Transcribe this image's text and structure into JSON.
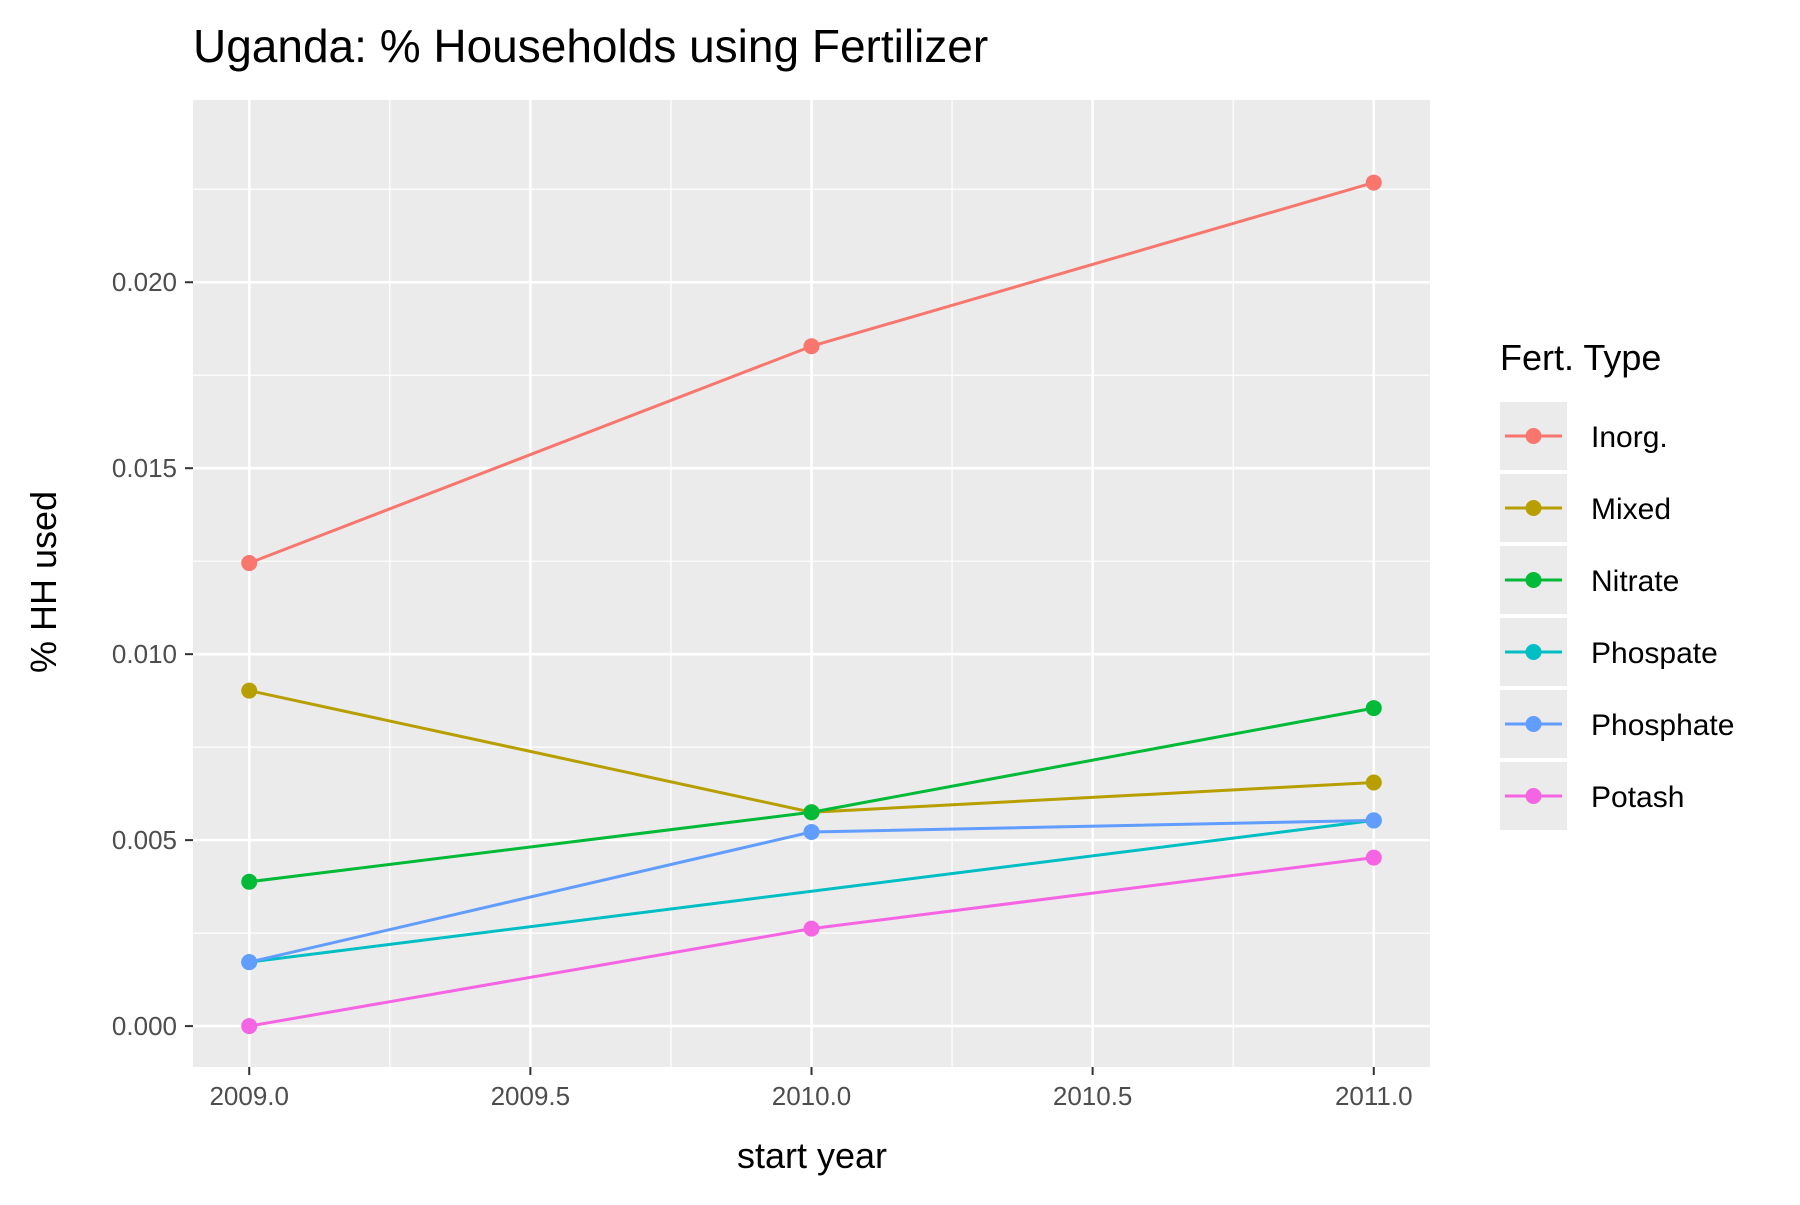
{
  "chart_data": {
    "type": "line",
    "title": "Uganda: % Households using Fertilizer",
    "xlabel": "start year",
    "ylabel": "% HH used",
    "x": [
      2009,
      2010,
      2011
    ],
    "xlim": [
      2008.9,
      2011.1
    ],
    "ylim": [
      -0.0011,
      0.0249
    ],
    "x_ticks": [
      2009.0,
      2009.5,
      2010.0,
      2010.5,
      2011.0
    ],
    "x_tick_labels": [
      "2009.0",
      "2009.5",
      "2010.0",
      "2010.5",
      "2011.0"
    ],
    "y_ticks": [
      0.0,
      0.005,
      0.01,
      0.015,
      0.02
    ],
    "y_tick_labels": [
      "0.000",
      "0.005",
      "0.010",
      "0.015",
      "0.020"
    ],
    "grid": true,
    "legend_title": "Fert. Type",
    "legend_position": "right",
    "series": [
      {
        "name": "Inorg.",
        "color": "#F8766D",
        "values": [
          0.01245,
          0.01828,
          0.02268
        ]
      },
      {
        "name": "Mixed",
        "color": "#B79F00",
        "values": [
          0.00902,
          0.00575,
          0.00655
        ]
      },
      {
        "name": "Nitrate",
        "color": "#00BA38",
        "values": [
          0.00388,
          0.00575,
          0.00855
        ]
      },
      {
        "name": "Phospate",
        "color": "#00BFC4",
        "values": [
          0.00172,
          null,
          0.00553
        ]
      },
      {
        "name": "Phosphate",
        "color": "#619CFF",
        "values": [
          0.00172,
          0.00522,
          0.00553
        ]
      },
      {
        "name": "Potash",
        "color": "#F564E3",
        "values": [
          0.0,
          0.00262,
          0.00453
        ]
      }
    ]
  }
}
